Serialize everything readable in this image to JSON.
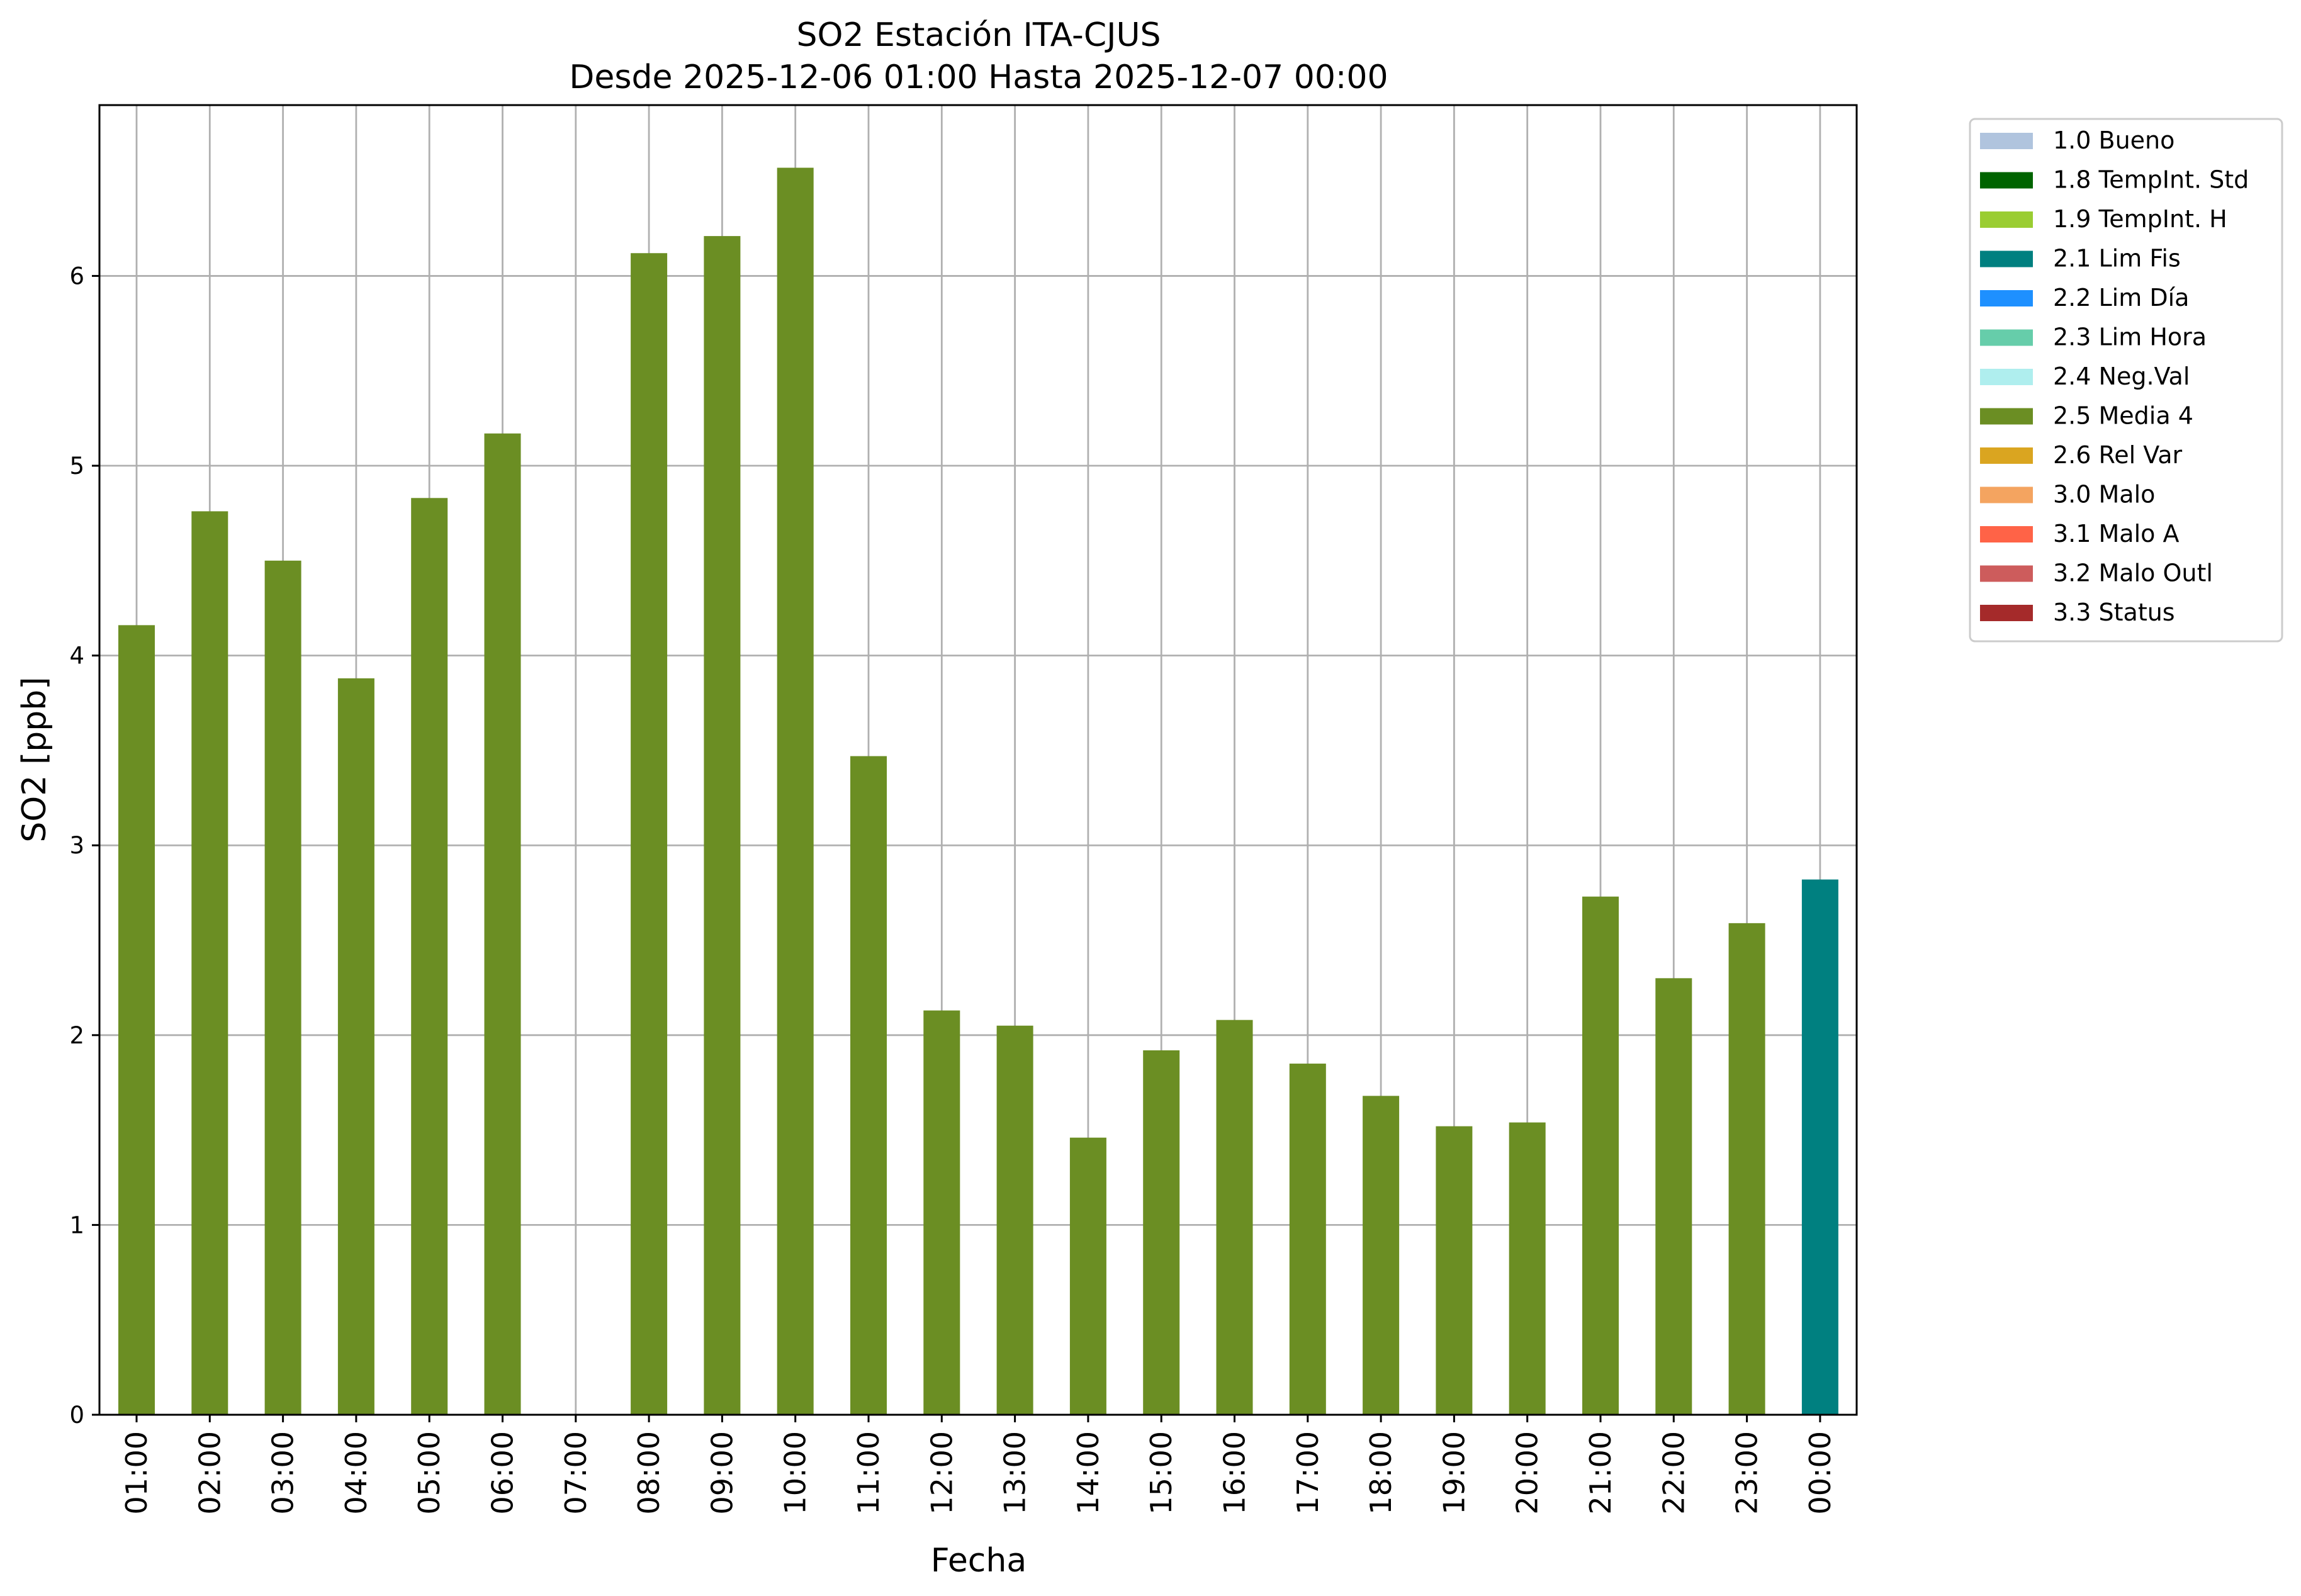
{
  "chart_data": {
    "type": "bar",
    "title": "SO2 Estación ITA-CJUS",
    "subtitle": "Desde 2025-12-06 01:00 Hasta 2025-12-07 00:00",
    "xlabel": "Fecha",
    "ylabel": "SO2 [ppb]",
    "ylim": [
      0,
      6.9
    ],
    "yticks": [
      "0",
      "1",
      "2",
      "3",
      "4",
      "5",
      "6"
    ],
    "grid": true,
    "legend_position": "outside-top-right",
    "categories": [
      "01:00",
      "02:00",
      "03:00",
      "04:00",
      "05:00",
      "06:00",
      "07:00",
      "08:00",
      "09:00",
      "10:00",
      "11:00",
      "12:00",
      "13:00",
      "14:00",
      "15:00",
      "16:00",
      "17:00",
      "18:00",
      "19:00",
      "20:00",
      "21:00",
      "22:00",
      "23:00",
      "00:00"
    ],
    "values": [
      4.16,
      4.76,
      4.5,
      3.88,
      4.83,
      5.17,
      null,
      6.12,
      6.21,
      6.57,
      3.47,
      2.13,
      2.05,
      1.46,
      1.92,
      2.08,
      1.85,
      1.68,
      1.52,
      1.54,
      2.73,
      2.3,
      2.59,
      2.82
    ],
    "bar_flags": [
      "2.5 Media 4",
      "2.5 Media 4",
      "2.5 Media 4",
      "2.5 Media 4",
      "2.5 Media 4",
      "2.5 Media 4",
      null,
      "2.5 Media 4",
      "2.5 Media 4",
      "2.5 Media 4",
      "2.5 Media 4",
      "2.5 Media 4",
      "2.5 Media 4",
      "2.5 Media 4",
      "2.5 Media 4",
      "2.5 Media 4",
      "2.5 Media 4",
      "2.5 Media 4",
      "2.5 Media 4",
      "2.5 Media 4",
      "2.5 Media 4",
      "2.5 Media 4",
      "2.5 Media 4",
      "2.1 Lim Fis"
    ],
    "missing_marker_category": "07:00",
    "legend": [
      {
        "label": "1.0 Bueno",
        "color": "#b0c4de"
      },
      {
        "label": "1.8 TempInt. Std",
        "color": "#006400"
      },
      {
        "label": "1.9 TempInt. H",
        "color": "#9acd32"
      },
      {
        "label": "2.1 Lim Fis",
        "color": "#008080"
      },
      {
        "label": "2.2 Lim Día",
        "color": "#1e90ff"
      },
      {
        "label": "2.3 Lim Hora",
        "color": "#66cdaa"
      },
      {
        "label": "2.4 Neg.Val",
        "color": "#afeeee"
      },
      {
        "label": "2.5 Media 4",
        "color": "#6b8e23"
      },
      {
        "label": "2.6 Rel Var",
        "color": "#daa520"
      },
      {
        "label": "3.0 Malo",
        "color": "#f4a460"
      },
      {
        "label": "3.1 Malo A",
        "color": "#ff6347"
      },
      {
        "label": "3.2 Malo Outl",
        "color": "#cd5c5c"
      },
      {
        "label": "3.3 Status",
        "color": "#a52a2a"
      }
    ]
  }
}
